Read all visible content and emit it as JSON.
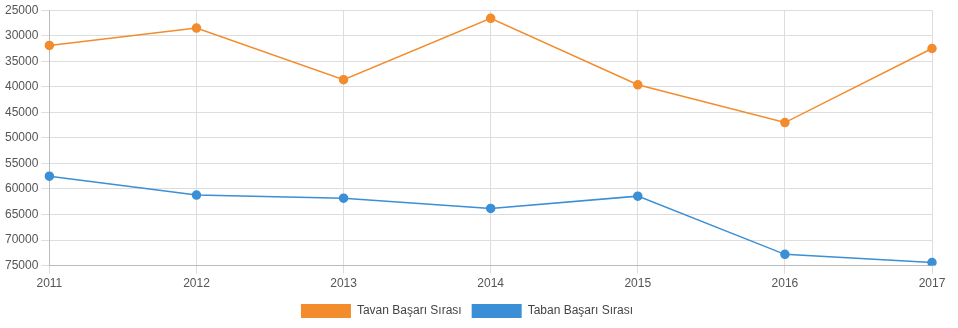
{
  "chart_data": {
    "type": "line",
    "categories": [
      "2011",
      "2012",
      "2013",
      "2014",
      "2015",
      "2016",
      "2017"
    ],
    "series": [
      {
        "name": "Tavan Başarı Sırası",
        "color": "#f28c2c",
        "marker": "circle",
        "values": [
          31900,
          28500,
          38600,
          26600,
          39600,
          47000,
          32500
        ]
      },
      {
        "name": "Taban Başarı Sırası",
        "color": "#3a8fd6",
        "marker": "circle",
        "values": [
          57500,
          61200,
          61800,
          63800,
          61400,
          72800,
          74400
        ]
      }
    ],
    "ylim": [
      25000,
      75000
    ],
    "yticks": [
      25000,
      30000,
      35000,
      40000,
      45000,
      50000,
      55000,
      60000,
      65000,
      70000,
      75000
    ],
    "grid": true,
    "legend": "bottom"
  }
}
